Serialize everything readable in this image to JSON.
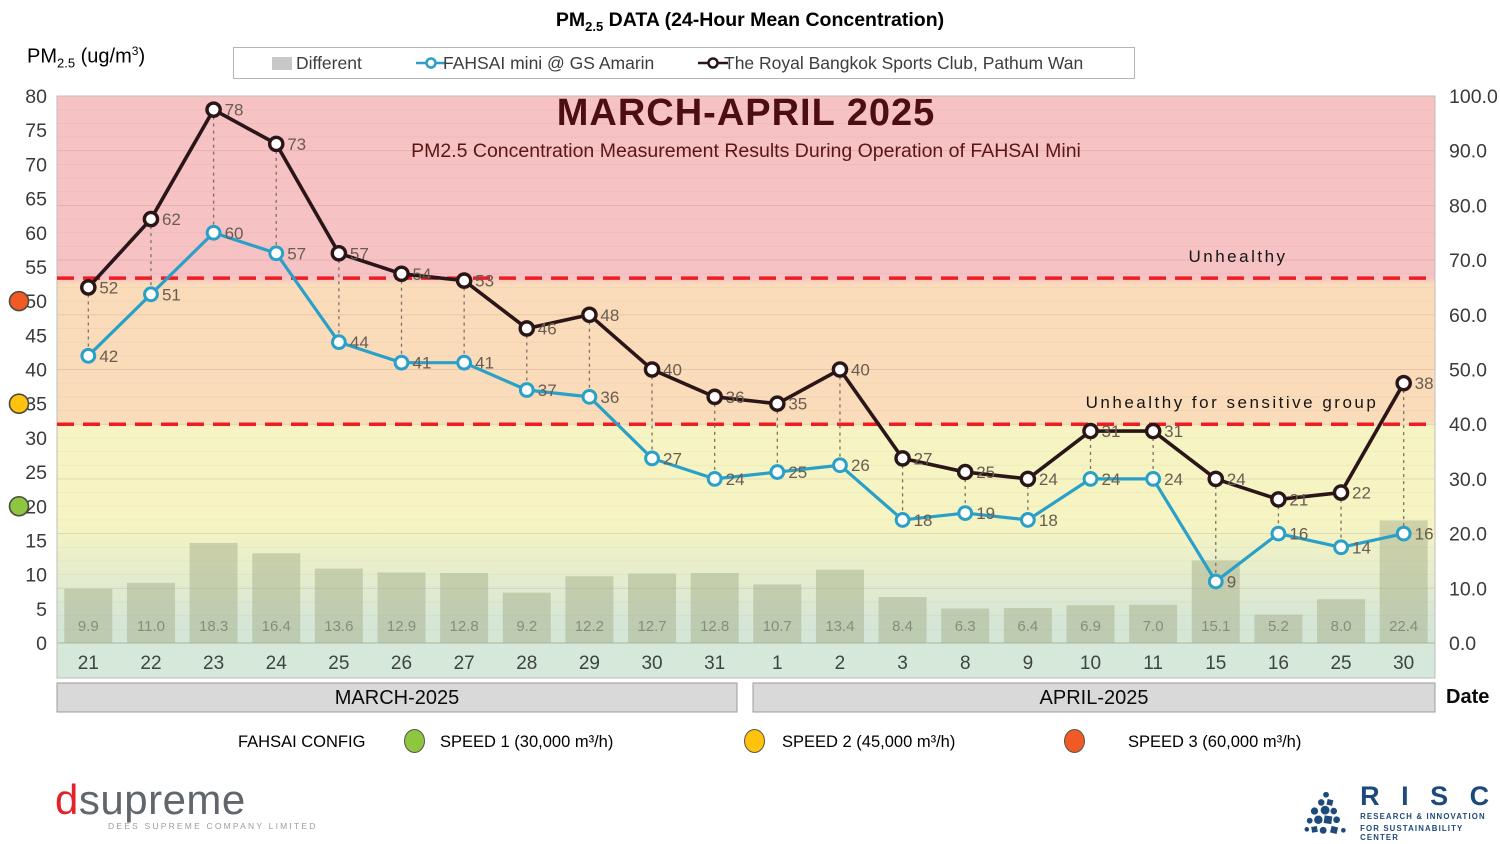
{
  "header": {
    "title_prefix": "PM",
    "title_sub": "2.5",
    "title_rest": " DATA (24-Hour Mean Concentration)",
    "ylabel_prefix": "PM",
    "ylabel_sub": "2.5",
    "ylabel_mid": " (ug/m",
    "ylabel_sup": "3",
    "ylabel_end": ")"
  },
  "legend": {
    "different": "Different",
    "fahsai": "FAHSAI mini @ GS Amarin",
    "royal": "The Royal Bangkok Sports Club, Pathum Wan"
  },
  "chart_data": {
    "type": "combo bar+line",
    "title": "MARCH-APRIL 2025",
    "subtitle": "PM2.5 Concentration Measurement Results During Operation of FAHSAI Mini",
    "categories": [
      "21",
      "22",
      "23",
      "24",
      "25",
      "26",
      "27",
      "28",
      "29",
      "30",
      "31",
      "1",
      "2",
      "3",
      "8",
      "9",
      "10",
      "11",
      "15",
      "16",
      "25",
      "30"
    ],
    "month_groups": [
      {
        "label": "MARCH-2025",
        "span": 11
      },
      {
        "label": "APRIL-2025",
        "span": 11
      }
    ],
    "date_label": "Date",
    "left_axis": {
      "min": 0,
      "max": 80,
      "step": 5,
      "ticks": [
        0,
        5,
        10,
        15,
        20,
        25,
        30,
        35,
        40,
        45,
        50,
        55,
        60,
        65,
        70,
        75,
        80
      ]
    },
    "right_axis": {
      "min": 0,
      "max": 100,
      "step": 10,
      "ticks": [
        "0.0",
        "10.0",
        "20.0",
        "30.0",
        "40.0",
        "50.0",
        "60.0",
        "70.0",
        "80.0",
        "90.0",
        "100.0"
      ]
    },
    "series": [
      {
        "name": "Different",
        "type": "bar",
        "axis": "right",
        "values": [
          "9.9",
          "11.0",
          "18.3",
          "16.4",
          "13.6",
          "12.9",
          "12.8",
          "9.2",
          "12.2",
          "12.7",
          "12.8",
          "10.7",
          "13.4",
          "8.4",
          "6.3",
          "6.4",
          "6.9",
          "7.0",
          "15.1",
          "5.2",
          "8.0",
          "22.4"
        ]
      },
      {
        "name": "FAHSAI mini @ GS Amarin",
        "type": "line",
        "axis": "left",
        "color": "#2aa0c8",
        "values": [
          42,
          51,
          60,
          57,
          44,
          41,
          41,
          37,
          36,
          27,
          24,
          25,
          26,
          18,
          19,
          18,
          24,
          24,
          9,
          16,
          14,
          16
        ]
      },
      {
        "name": "The Royal Bangkok Sports Club, Pathum Wan",
        "type": "line",
        "axis": "left",
        "color": "#2a1618",
        "values": [
          52,
          62,
          78,
          73,
          57,
          54,
          53,
          46,
          48,
          40,
          36,
          35,
          40,
          27,
          25,
          24,
          31,
          31,
          24,
          21,
          22,
          38
        ]
      }
    ],
    "thresholds": [
      {
        "label": "Unhealthy",
        "right_value": 66.7
      },
      {
        "label": "Unhealthy for sensitive group",
        "right_value": 40
      }
    ],
    "speed_dots": [
      {
        "left_value": 50,
        "color": "#f15a24"
      },
      {
        "left_value": 35,
        "color": "#ffc20d"
      },
      {
        "left_value": 20,
        "color": "#8dc63f"
      }
    ],
    "colors": {
      "zone_red": "#f6c2c4",
      "zone_orange": "#fadcba",
      "zone_yellow": "#f6f4c3",
      "zone_green": "#d5e6d6",
      "strip": "#d6e8da",
      "bar_fill": "rgba(166,175,140,0.5)",
      "bar_label": "#878d7c",
      "value_label": "#6a5c50",
      "threshold": "#ee1c24",
      "connector": "#7d6f5f",
      "band_bg": "#d9d9d9",
      "different_marker": "#c8c8c8"
    }
  },
  "config_legend": {
    "title": "FAHSAI CONFIG",
    "items": [
      {
        "label": "SPEED 1 (30,000 m³/h)",
        "color": "#8dc63f"
      },
      {
        "label": "SPEED 2 (45,000 m³/h)",
        "color": "#ffc20d"
      },
      {
        "label": "SPEED 3 (60,000 m³/h)",
        "color": "#f15a24"
      }
    ]
  },
  "logos": {
    "dsupreme": {
      "d": "d",
      "rest": "supreme",
      "tagline": "DEES SUPREME COMPANY LIMITED"
    },
    "risc": {
      "name": "R I S C",
      "tagline1": "RESEARCH & INNOVATION",
      "tagline2": "FOR SUSTAINABILITY CENTER"
    }
  }
}
